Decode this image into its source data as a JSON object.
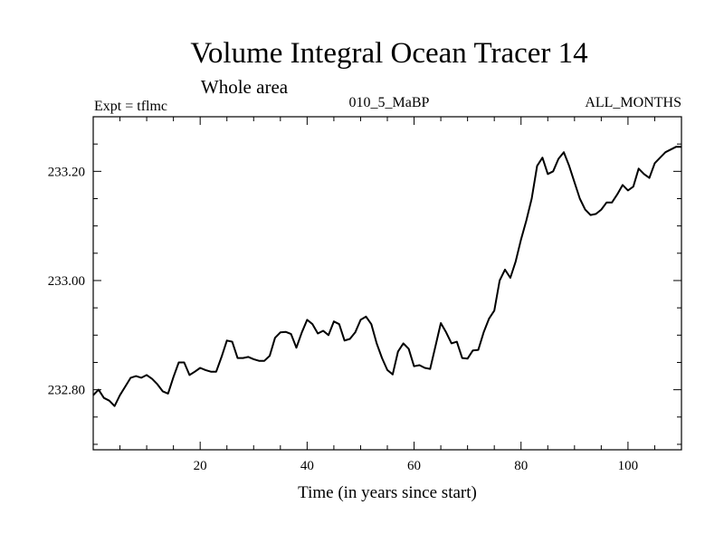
{
  "header": {
    "title": "Volume Integral Ocean Tracer 14",
    "subtitle": "Whole area",
    "experiment": "Expt = tflmc",
    "period": "010_5_MaBP",
    "months": "ALL_MONTHS"
  },
  "chart_data": {
    "type": "line",
    "title": "Volume Integral Ocean Tracer 14",
    "subtitle": "Whole area",
    "xlabel": "Time (in years since start)",
    "ylabel": "",
    "xlim": [
      0,
      110
    ],
    "ylim": [
      232.69,
      233.3
    ],
    "xticks_major": [
      20,
      40,
      60,
      80,
      100
    ],
    "xtick_labels": [
      "20",
      "40",
      "60",
      "80",
      "100"
    ],
    "yticks_major": [
      232.8,
      233.0,
      233.2
    ],
    "ytick_labels": [
      "232.80",
      "233.00",
      "233.20"
    ],
    "grid": false,
    "series": [
      {
        "color": "#000000",
        "x": [
          0,
          1,
          2,
          3,
          4,
          5,
          6,
          7,
          8,
          9,
          10,
          11,
          12,
          13,
          14,
          15,
          16,
          17,
          18,
          19,
          20,
          21,
          22,
          23,
          24,
          25,
          26,
          27,
          28,
          29,
          30,
          31,
          32,
          33,
          34,
          35,
          36,
          37,
          38,
          39,
          40,
          41,
          42,
          43,
          44,
          45,
          46,
          47,
          48,
          49,
          50,
          51,
          52,
          53,
          54,
          55,
          56,
          57,
          58,
          59,
          60,
          61,
          62,
          63,
          64,
          65,
          66,
          67,
          68,
          69,
          70,
          71,
          72,
          73,
          74,
          75,
          76,
          77,
          78,
          79,
          80,
          81,
          82,
          83,
          84,
          85,
          86,
          87,
          88,
          89,
          90,
          91,
          92,
          93,
          94,
          95,
          96,
          97,
          98,
          99,
          100,
          101,
          102,
          103,
          104,
          105,
          106,
          107,
          108,
          109,
          110
        ],
        "y": [
          232.79,
          232.8,
          232.785,
          232.78,
          232.77,
          232.79,
          232.806,
          232.822,
          232.825,
          232.822,
          232.827,
          232.82,
          232.81,
          232.797,
          232.793,
          232.823,
          232.85,
          232.85,
          232.827,
          232.833,
          232.84,
          232.836,
          232.833,
          232.833,
          232.86,
          232.89,
          232.888,
          232.858,
          232.858,
          232.86,
          232.856,
          232.853,
          232.853,
          232.862,
          232.895,
          232.905,
          232.906,
          232.902,
          232.877,
          232.905,
          232.928,
          232.92,
          232.903,
          232.908,
          232.9,
          232.925,
          232.92,
          232.89,
          232.893,
          232.905,
          232.928,
          232.934,
          232.92,
          232.885,
          232.858,
          232.836,
          232.828,
          232.87,
          232.885,
          232.875,
          232.843,
          232.845,
          232.84,
          232.838,
          232.88,
          232.922,
          232.905,
          232.885,
          232.888,
          232.858,
          232.857,
          232.872,
          232.873,
          232.905,
          232.93,
          232.945,
          233.0,
          233.02,
          233.005,
          233.035,
          233.075,
          233.11,
          233.15,
          233.21,
          233.225,
          233.195,
          233.2,
          233.223,
          233.235,
          233.21,
          233.18,
          233.15,
          233.13,
          233.12,
          233.122,
          233.13,
          233.143,
          233.143,
          233.158,
          233.175,
          233.165,
          233.172,
          233.205,
          233.195,
          233.188,
          233.215,
          233.225,
          233.235,
          233.24,
          233.245,
          233.245
        ]
      }
    ]
  }
}
